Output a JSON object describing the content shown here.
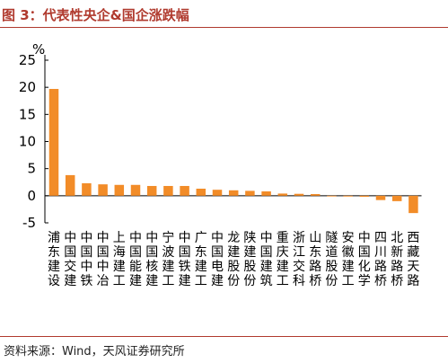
{
  "title": "图 3：代表性央企&国企涨跌幅",
  "source": "资料来源：Wind，天风证券研究所",
  "y_unit": "%",
  "colors": {
    "bar": "#f28c28",
    "accent": "#b03a2e",
    "axis": "#000000"
  },
  "chart_data": {
    "type": "bar",
    "title": "代表性央企&国企涨跌幅",
    "xlabel": "",
    "ylabel": "%",
    "ylim": [
      -5,
      25
    ],
    "yticks": [
      -5,
      0,
      5,
      10,
      15,
      20,
      25
    ],
    "grid": false,
    "categories": [
      "浦东建设",
      "中国交建",
      "中国中铁",
      "中国中冶",
      "上海建工",
      "中国能建",
      "中国核建",
      "宁波建工",
      "中国铁建",
      "广东建工",
      "中国电建",
      "龙建股份",
      "陕建股份",
      "中国建筑",
      "重庆建工",
      "浙江交科",
      "山东路桥",
      "隧道股份",
      "安徽建工",
      "中国化学",
      "四川路桥",
      "北新路桥",
      "西藏天路"
    ],
    "values": [
      19.7,
      3.8,
      2.3,
      2.1,
      2.0,
      2.0,
      1.8,
      1.8,
      1.8,
      1.3,
      1.1,
      1.0,
      0.9,
      0.8,
      0.4,
      0.35,
      0.3,
      -0.1,
      -0.15,
      -0.2,
      -0.8,
      -1.0,
      -3.2
    ]
  }
}
